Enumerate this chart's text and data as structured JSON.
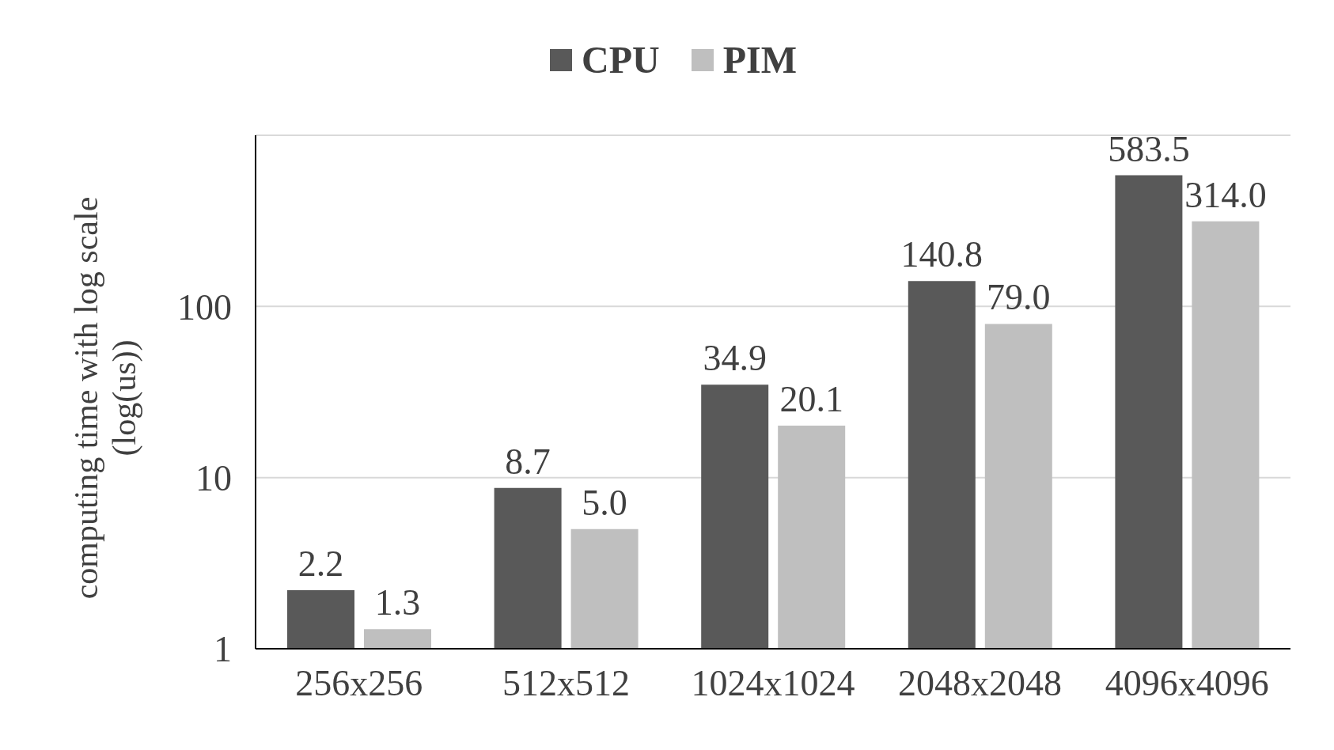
{
  "chart_data": {
    "type": "bar",
    "ylabel": "computing time with log scale\n(log(us))",
    "categories": [
      "256x256",
      "512x512",
      "1024x1024",
      "2048x2048",
      "4096x4096"
    ],
    "series": [
      {
        "name": "CPU",
        "color": "#595959",
        "values": [
          2.2,
          8.7,
          34.9,
          140.8,
          583.5
        ]
      },
      {
        "name": "PIM",
        "color": "#bfbfbf",
        "values": [
          1.3,
          5.0,
          20.1,
          79.0,
          314.0
        ]
      }
    ],
    "value_labels": [
      [
        "2.2",
        "8.7",
        "34.9",
        "140.8",
        "583.5"
      ],
      [
        "1.3",
        "5.0",
        "20.1",
        "79.0",
        "314.0"
      ]
    ],
    "log": "y",
    "ylim": [
      1,
      1000
    ],
    "yticks": [
      1,
      10,
      100
    ],
    "grid": "y",
    "legend": "top"
  }
}
